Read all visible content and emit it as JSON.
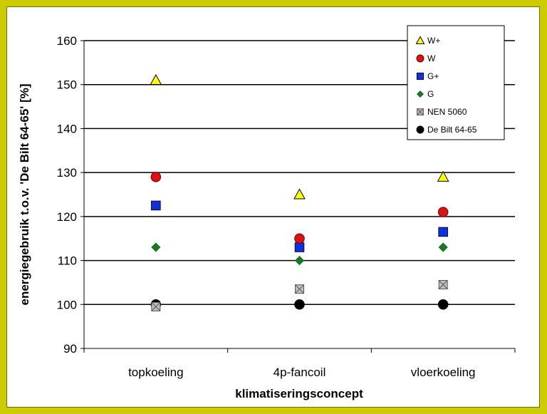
{
  "colors": {
    "frame_background": "#cccc00",
    "plot_background": "#ffffff",
    "gridline": "#000000"
  },
  "chart_data": {
    "type": "scatter",
    "title": "",
    "xlabel": "klimatiseringsconcept",
    "ylabel": "energiegebruik t.o.v. 'De Bilt 64-65' [%]",
    "categories": [
      "topkoeling",
      "4p-fancoil",
      "vloerkoeling"
    ],
    "ylim": [
      90,
      160
    ],
    "yticks": [
      90,
      100,
      110,
      120,
      130,
      140,
      150,
      160
    ],
    "grid": true,
    "legend_position": "top-right",
    "series": [
      {
        "name": "W+",
        "marker": "triangle",
        "color": "#ffff00",
        "values": [
          151,
          125,
          129
        ]
      },
      {
        "name": "W",
        "marker": "circle",
        "color": "#e01010",
        "values": [
          129,
          115,
          121
        ]
      },
      {
        "name": "G+",
        "marker": "square",
        "color": "#1030e0",
        "values": [
          122.5,
          113,
          116.5
        ]
      },
      {
        "name": "G",
        "marker": "diamond",
        "color": "#1a7a1a",
        "values": [
          113,
          110,
          113
        ]
      },
      {
        "name": "NEN 5060",
        "marker": "crossed-square",
        "color": "#c0c0c0",
        "values": [
          99.5,
          103.5,
          104.5
        ]
      },
      {
        "name": "De Bilt 64-65",
        "marker": "circle",
        "color": "#000000",
        "values": [
          100,
          100,
          100
        ]
      }
    ]
  }
}
